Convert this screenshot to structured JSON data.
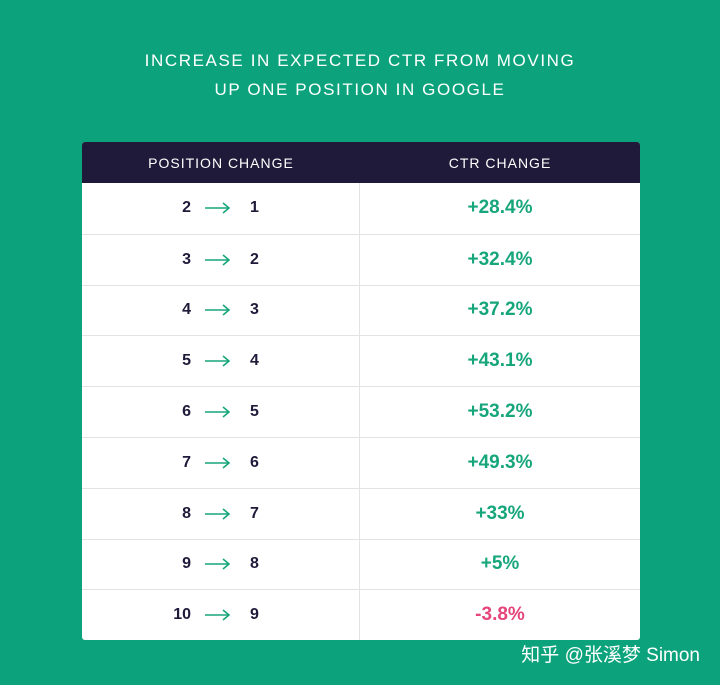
{
  "title": {
    "line1": "INCREASE IN EXPECTED CTR FROM MOVING",
    "line2": "UP ONE POSITION IN GOOGLE"
  },
  "watermark": "知乎 @张溪梦 Simon",
  "colors": {
    "background": "#0ca37c",
    "header": "#201a3a",
    "positive": "#17a67b",
    "negative": "#e5457a"
  },
  "chart_data": {
    "type": "table",
    "title": "INCREASE IN EXPECTED CTR FROM MOVING UP ONE POSITION IN GOOGLE",
    "columns": [
      "POSITION CHANGE",
      "CTR CHANGE"
    ],
    "rows": [
      {
        "from": "2",
        "to": "1",
        "ctr": "+28.4%",
        "value": 28.4
      },
      {
        "from": "3",
        "to": "2",
        "ctr": "+32.4%",
        "value": 32.4
      },
      {
        "from": "4",
        "to": "3",
        "ctr": "+37.2%",
        "value": 37.2
      },
      {
        "from": "5",
        "to": "4",
        "ctr": "+43.1%",
        "value": 43.1
      },
      {
        "from": "6",
        "to": "5",
        "ctr": "+53.2%",
        "value": 53.2
      },
      {
        "from": "7",
        "to": "6",
        "ctr": "+49.3%",
        "value": 49.3
      },
      {
        "from": "8",
        "to": "7",
        "ctr": "+33%",
        "value": 33
      },
      {
        "from": "9",
        "to": "8",
        "ctr": "+5%",
        "value": 5
      },
      {
        "from": "10",
        "to": "9",
        "ctr": "-3.8%",
        "value": -3.8
      }
    ]
  }
}
